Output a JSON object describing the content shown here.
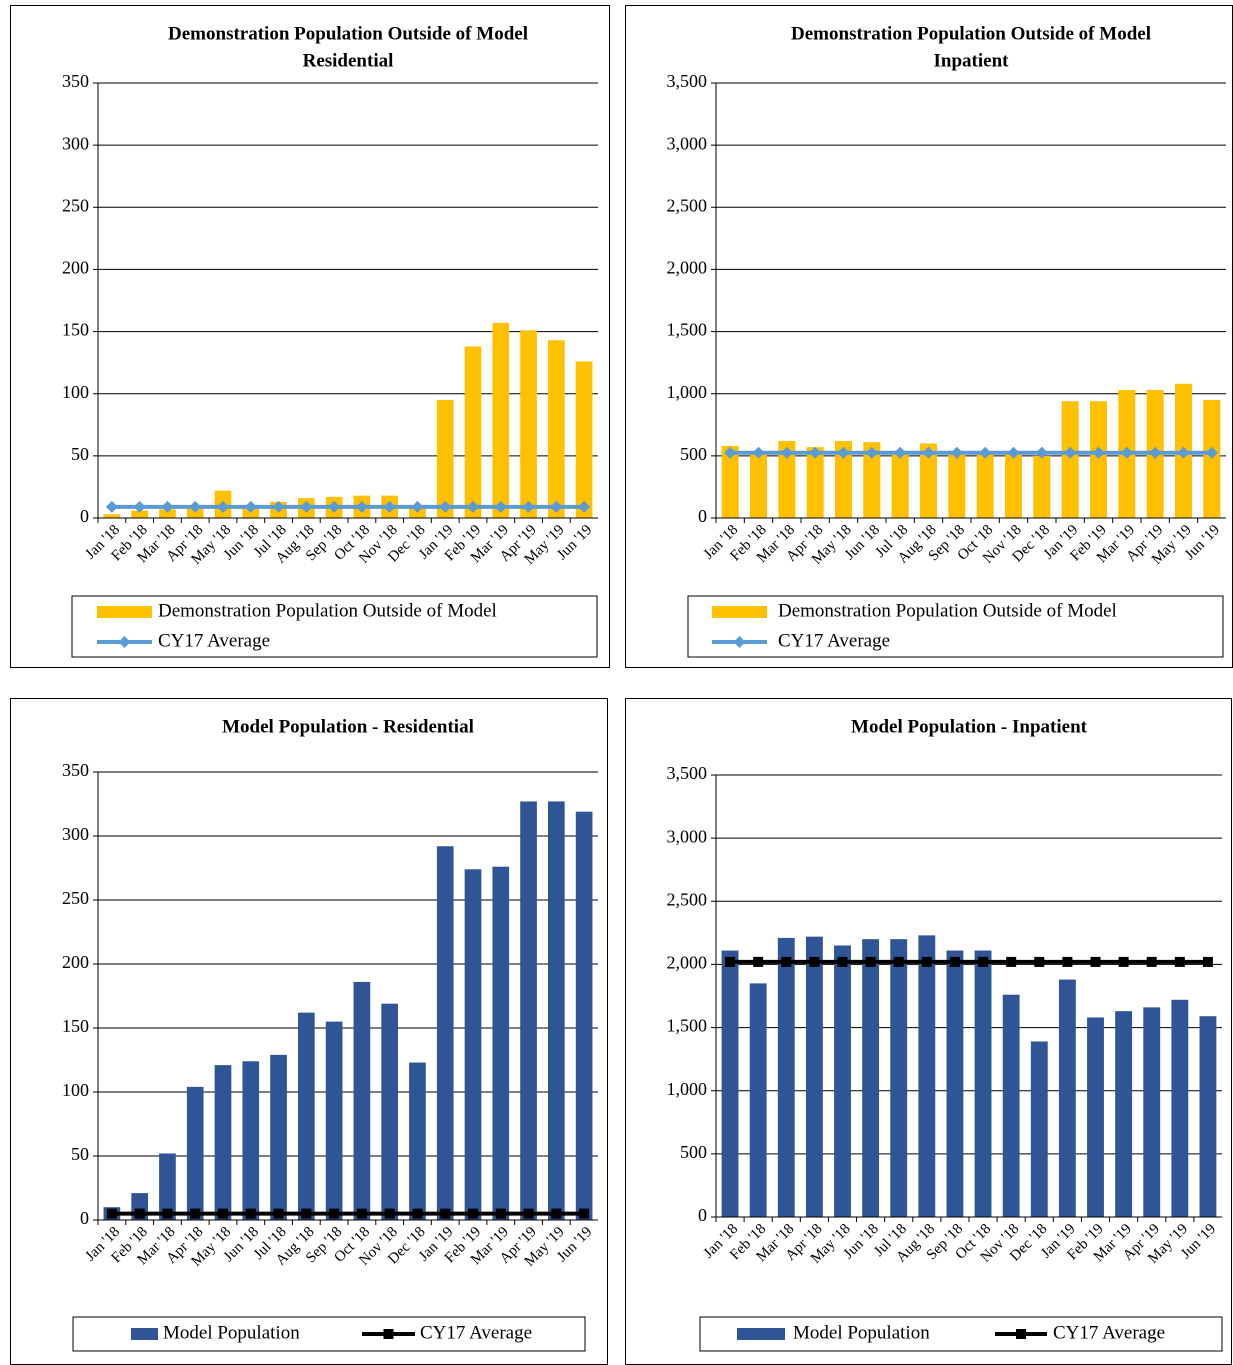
{
  "chart_data": [
    {
      "type": "bar",
      "title": [
        "Demonstration Population  Outside of Model",
        "Residential"
      ],
      "categories": [
        "Jan '18",
        "Feb '18",
        "Mar '18",
        "Apr '18",
        "May '18",
        "Jun '18",
        "Jul '18",
        "Aug '18",
        "Sep '18",
        "Oct '18",
        "Nov '18",
        "Dec '18",
        "Jan '19",
        "Feb '19",
        "Mar '19",
        "Apr '19",
        "May '19",
        "Jun '19"
      ],
      "series": [
        {
          "name": "Demonstration Population Outside of Model",
          "type": "bar",
          "color": "#FFC000",
          "values": [
            3,
            6,
            7,
            9,
            22,
            10,
            13,
            16,
            17,
            18,
            18,
            8,
            95,
            138,
            157,
            151,
            143,
            126
          ]
        },
        {
          "name": "CY17 Average",
          "type": "line",
          "marker": "diamond",
          "color": "#5B9BD5",
          "values": [
            9,
            9,
            9,
            9,
            9,
            9,
            9,
            9,
            9,
            9,
            9,
            9,
            9,
            9,
            9,
            9,
            9,
            9
          ]
        }
      ],
      "ylim": [
        0,
        350
      ],
      "yticks": [
        0,
        50,
        100,
        150,
        200,
        250,
        300,
        350
      ],
      "grid": true,
      "legend": "bottom"
    },
    {
      "type": "bar",
      "title": [
        "Demonstration Population  Outside of Model",
        "Inpatient"
      ],
      "categories": [
        "Jan '18",
        "Feb '18",
        "Mar '18",
        "Apr '18",
        "May '18",
        "Jun '18",
        "Jul '18",
        "Aug '18",
        "Sep '18",
        "Oct '18",
        "Nov '18",
        "Dec '18",
        "Jan '19",
        "Feb '19",
        "Mar '19",
        "Apr '19",
        "May '19",
        "Jun '19"
      ],
      "series": [
        {
          "name": "Demonstration Population Outside of Model",
          "type": "bar",
          "color": "#FFC000",
          "values": [
            580,
            530,
            620,
            570,
            620,
            610,
            530,
            600,
            540,
            520,
            510,
            500,
            940,
            940,
            1030,
            1030,
            1080,
            950
          ]
        },
        {
          "name": "CY17 Average",
          "type": "line",
          "marker": "diamond",
          "color": "#5B9BD5",
          "values": [
            525,
            525,
            525,
            525,
            525,
            525,
            525,
            525,
            525,
            525,
            525,
            525,
            525,
            525,
            525,
            525,
            525,
            525
          ]
        }
      ],
      "ylim": [
        0,
        3500
      ],
      "yticks": [
        0,
        500,
        {
          "value": 1000,
          "label": "1,000"
        },
        {
          "value": 1500,
          "label": "1,500"
        },
        {
          "value": 2000,
          "label": "2,000"
        },
        {
          "value": 2500,
          "label": "2,500"
        },
        {
          "value": 3000,
          "label": "3,000"
        },
        {
          "value": 3500,
          "label": "3,500"
        }
      ],
      "grid": true,
      "legend": "bottom"
    },
    {
      "type": "bar",
      "title": [
        "Model Population  - Residential"
      ],
      "categories": [
        "Jan '18",
        "Feb '18",
        "Mar '18",
        "Apr '18",
        "May '18",
        "Jun '18",
        "Jul '18",
        "Aug '18",
        "Sep '18",
        "Oct '18",
        "Nov '18",
        "Dec '18",
        "Jan '19",
        "Feb '19",
        "Mar '19",
        "Apr '19",
        "May '19",
        "Jun '19"
      ],
      "series": [
        {
          "name": "Model Population",
          "type": "bar",
          "color": "#2F5597",
          "values": [
            10,
            21,
            52,
            104,
            121,
            124,
            129,
            162,
            155,
            186,
            169,
            123,
            292,
            274,
            276,
            327,
            327,
            319
          ]
        },
        {
          "name": "CY17 Average",
          "type": "line",
          "marker": "square",
          "color": "#000000",
          "values": [
            5,
            5,
            5,
            5,
            5,
            5,
            5,
            5,
            5,
            5,
            5,
            5,
            5,
            5,
            5,
            5,
            5,
            5
          ]
        }
      ],
      "ylim": [
        0,
        350
      ],
      "yticks": [
        0,
        50,
        100,
        150,
        200,
        250,
        300,
        350
      ],
      "grid": true,
      "legend": "bottom"
    },
    {
      "type": "bar",
      "title": [
        "Model Population  - Inpatient"
      ],
      "categories": [
        "Jan '18",
        "Feb '18",
        "Mar '18",
        "Apr '18",
        "May '18",
        "Jun '18",
        "Jul '18",
        "Aug '18",
        "Sep '18",
        "Oct '18",
        "Nov '18",
        "Dec '18",
        "Jan '19",
        "Feb '19",
        "Mar '19",
        "Apr '19",
        "May '19",
        "Jun '19"
      ],
      "series": [
        {
          "name": "Model Population",
          "type": "bar",
          "color": "#2F5597",
          "values": [
            2110,
            1850,
            2210,
            2220,
            2150,
            2200,
            2200,
            2230,
            2110,
            2110,
            1760,
            1390,
            1880,
            1580,
            1630,
            1660,
            1720,
            1590
          ]
        },
        {
          "name": "CY17 Average",
          "type": "line",
          "marker": "square",
          "color": "#000000",
          "values": [
            2020,
            2020,
            2020,
            2020,
            2020,
            2020,
            2020,
            2020,
            2020,
            2020,
            2020,
            2020,
            2020,
            2020,
            2020,
            2020,
            2020,
            2020
          ]
        }
      ],
      "ylim": [
        0,
        3500
      ],
      "yticks": [
        0,
        500,
        {
          "value": 1000,
          "label": "1,000"
        },
        {
          "value": 1500,
          "label": "1,500"
        },
        {
          "value": 2000,
          "label": "2,000"
        },
        {
          "value": 2500,
          "label": "2,500"
        },
        {
          "value": 3000,
          "label": "3,000"
        },
        {
          "value": 3500,
          "label": "3,500"
        }
      ],
      "grid": true,
      "legend": "bottom"
    }
  ]
}
